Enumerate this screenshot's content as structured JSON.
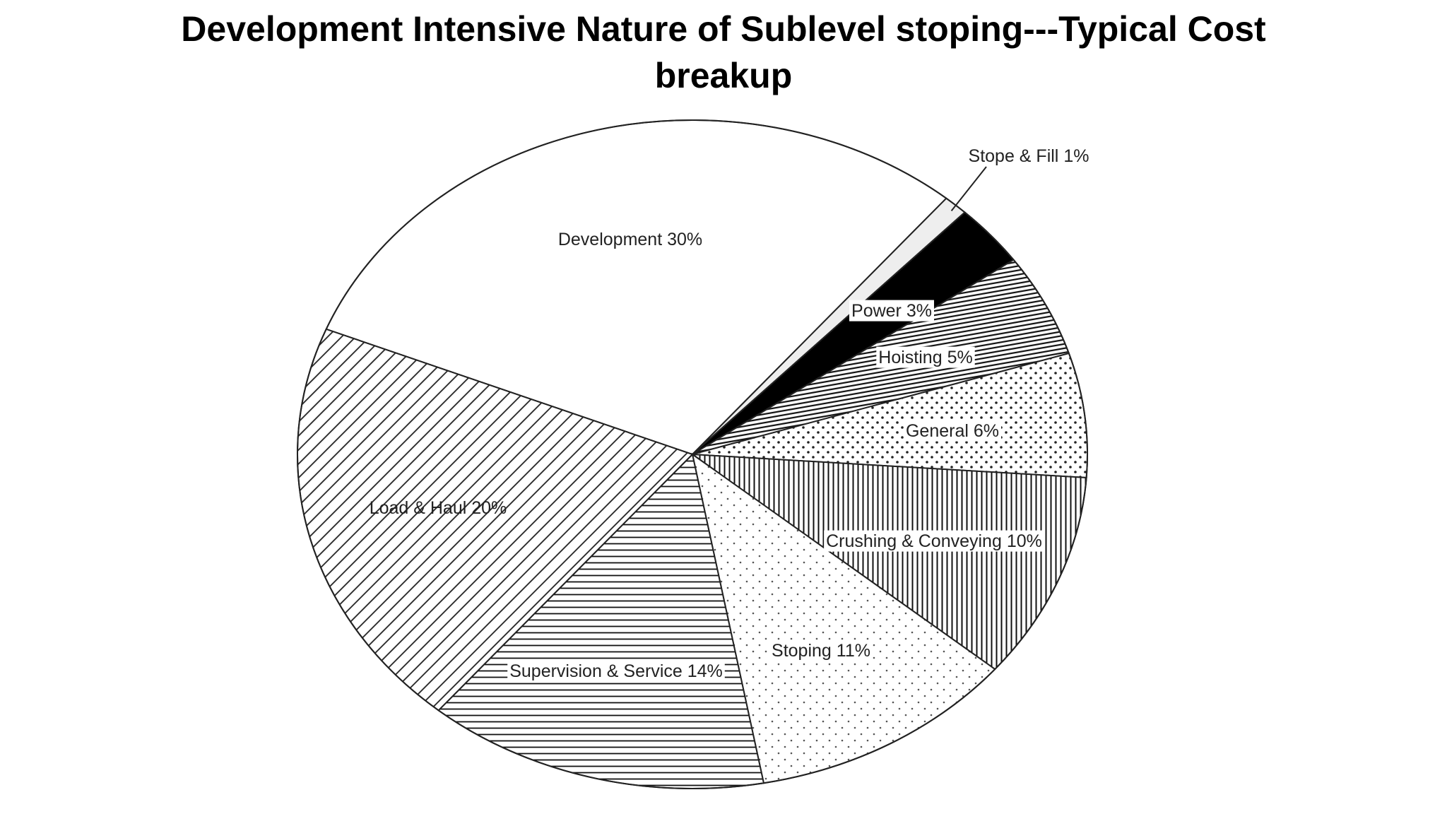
{
  "chart_data": {
    "type": "pie",
    "title": "Development Intensive Nature of Sublevel stoping---Typical Cost breakup",
    "categories": [
      "Development",
      "Stope & Fill",
      "Power",
      "Hoisting",
      "General",
      "Crushing & Conveying",
      "Stoping",
      "Supervision & Service",
      "Load & Haul"
    ],
    "values": [
      30,
      1,
      3,
      5,
      6,
      10,
      11,
      14,
      20
    ],
    "value_labels": [
      "30%",
      "1%",
      "3%",
      "5%",
      "6%",
      "10%",
      "11%",
      "14%",
      "20%"
    ]
  }
}
